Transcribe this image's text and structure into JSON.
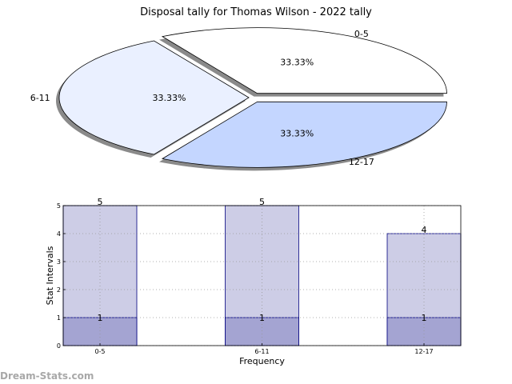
{
  "watermark": "Dream-Stats.com",
  "chart_data": [
    {
      "type": "pie",
      "title": "Disposal tally for Thomas Wilson - 2022 tally",
      "categories": [
        "0-5",
        "6-11",
        "12-17"
      ],
      "values": [
        33.33,
        33.33,
        33.33
      ],
      "labels": [
        "33.33%",
        "33.33%",
        "33.33%"
      ],
      "colors": [
        "#ffffff",
        "#eaf0ff",
        "#c4d6ff"
      ],
      "shadow_color": "#8a8a8a"
    },
    {
      "type": "bar",
      "categories": [
        "0-5",
        "6-11",
        "12-17"
      ],
      "series": [
        {
          "values": [
            1,
            1,
            1
          ],
          "color": "#a4a4d2"
        },
        {
          "values": [
            5,
            5,
            4
          ],
          "color": "#cdcde6"
        }
      ],
      "value_labels": [
        "5",
        "5",
        "4"
      ],
      "base_labels": [
        "1",
        "1",
        "1"
      ],
      "xlabel": "Frequency",
      "ylabel": "Stat Intervals",
      "ylim": [
        0,
        5
      ],
      "yticks": [
        "0",
        "1",
        "2",
        "3",
        "4",
        "5"
      ],
      "grid": true,
      "edge_color": "#000080"
    }
  ]
}
